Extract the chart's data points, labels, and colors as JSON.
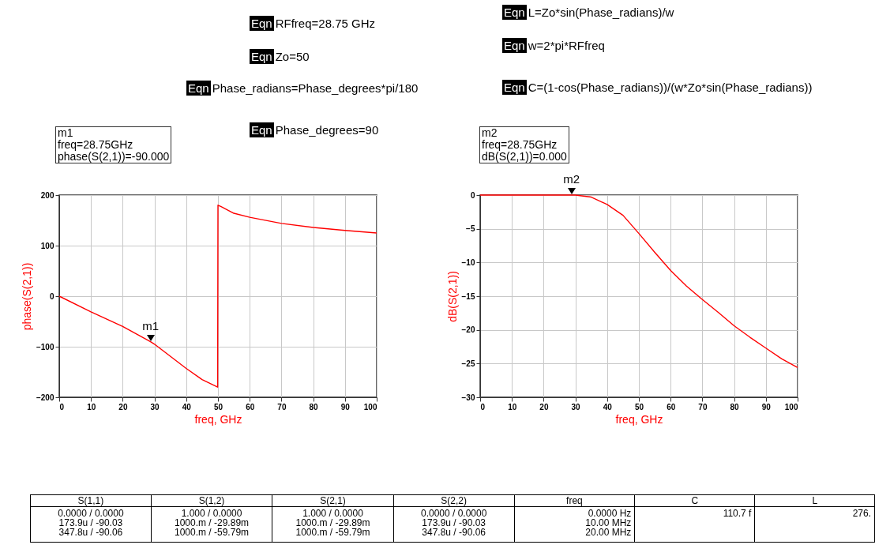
{
  "chart_data": [
    {
      "type": "line",
      "xlabel": "freq, GHz",
      "ylabel": "phase(S(2,1))",
      "x": [
        0,
        10,
        20,
        28.75,
        30,
        40,
        45,
        49.9,
        50,
        51,
        55,
        60,
        70,
        80,
        90,
        100
      ],
      "xlim": [
        0,
        100
      ],
      "xticks": [
        0,
        10,
        20,
        30,
        40,
        50,
        60,
        70,
        80,
        90,
        100
      ],
      "ylim": [
        -200,
        200
      ],
      "yticks": [
        -200,
        -100,
        0,
        100,
        200
      ],
      "grid": true,
      "series": [
        {
          "color": "#ff0000",
          "values": [
            0,
            -31,
            -60,
            -90,
            -95,
            -143,
            -165,
            -180,
            180,
            177,
            164,
            156,
            144,
            136,
            130,
            125
          ]
        }
      ],
      "annotations": [
        {
          "text": "m1",
          "x": 28.75,
          "y": -90
        },
        "m1",
        "freq=28.75GHz",
        "phase(S(2,1))=-90.000"
      ]
    },
    {
      "type": "line",
      "xlabel": "freq, GHz",
      "ylabel": "dB(S(2,1))",
      "x": [
        0,
        10,
        20,
        28.75,
        30,
        35,
        40,
        45,
        50,
        55,
        60,
        65,
        70,
        75,
        80,
        85,
        90,
        95,
        100
      ],
      "xlim": [
        0,
        100
      ],
      "xticks": [
        0,
        10,
        20,
        30,
        40,
        50,
        60,
        70,
        80,
        90,
        100
      ],
      "ylim": [
        -30,
        0
      ],
      "yticks": [
        -30,
        -25,
        -20,
        -15,
        -10,
        -5,
        0
      ],
      "grid": true,
      "series": [
        {
          "color": "#ff0000",
          "values": [
            0,
            0,
            0,
            0,
            0,
            -0.3,
            -1.4,
            -3,
            -5.7,
            -8.5,
            -11.2,
            -13.5,
            -15.5,
            -17.4,
            -19.4,
            -21.1,
            -22.7,
            -24.3,
            -25.6
          ]
        }
      ],
      "annotations": [
        {
          "text": "m2",
          "x": 28.75,
          "y": 0
        },
        "m2",
        "freq=28.75GHz",
        "dB(S(2,1))=0.000"
      ]
    },
    {
      "type": "other",
      "annotations": [
        "Eqn RFfreq=28.75 GHz",
        "Eqn Zo=50",
        "Eqn Phase_radians=Phase_degrees*pi/180",
        "Eqn Phase_degrees=90",
        "Eqn L=Zo*sin(Phase_radians)/w",
        "Eqn w=2*pi*RFfreq",
        "Eqn C=(1-cos(Phase_radians))/(w*Zo*sin(Phase_radians))"
      ]
    },
    {
      "type": "other",
      "categories": [
        "S(1,1)",
        "S(1,2)",
        "S(2,1)",
        "S(2,2)",
        "freq",
        "C",
        "L"
      ],
      "annotations": [
        "0.0000 / 0.0000\n173.9u / -90.03\n347.8u / -90.06",
        "1.000  / 0.0000\n1000.m / -29.89m\n1000.m / -59.79m",
        "1.000  / 0.0000\n1000.m / -29.89m\n1000.m / -59.79m",
        "0.0000 / 0.0000\n173.9u / -90.03\n347.8u / -90.06",
        "0.0000 Hz\n10.00 MHz\n20.00 MHz",
        "110.7 f",
        "276."
      ]
    }
  ]
}
